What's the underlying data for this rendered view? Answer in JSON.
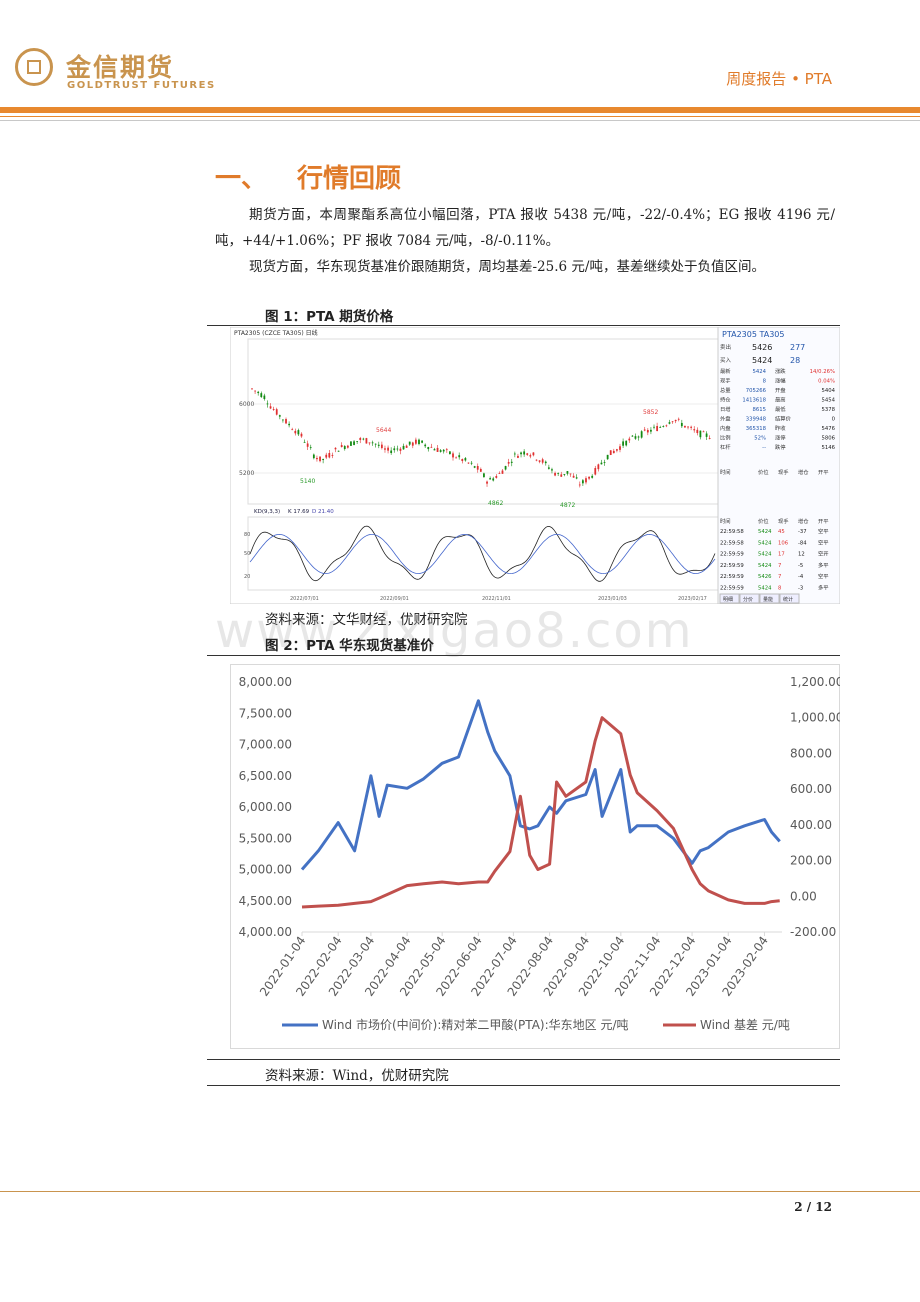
{
  "header": {
    "brand_cn": "金信期货",
    "brand_en": "GOLDTRUST FUTURES",
    "report_type": "周度报告 • PTA",
    "brand_color": "#c9944e",
    "accent_color": "#e8892f"
  },
  "section": {
    "number": "一、",
    "title": "行情回顾"
  },
  "paragraphs": [
    "期货方面，本周聚酯系高位小幅回落，PTA 报收 5438 元/吨，-22/-0.4%；EG 报收 4196 元/吨，+44/+1.06%；PF 报收 7084 元/吨，-8/-0.11%。",
    "现货方面，华东现货基准价跟随期货，周均基差-25.6 元/吨，基差继续处于负值区间。"
  ],
  "figure1": {
    "caption": "图 1：PTA 期货价格",
    "source": "资料来源：文华财经，优财研究院",
    "toolbar": "PTA2305 (CZCE TA305)  日线",
    "price_labels": [
      "6000",
      "5200"
    ],
    "point_labels": [
      "5644",
      "5140",
      "4862",
      "4872",
      "5852"
    ],
    "kd_title": "KD(9,3,3)",
    "kd_k": "K 17.69",
    "kd_d": "D 21.40",
    "kd_ticks": [
      "80",
      "50",
      "20"
    ],
    "dates": [
      "2022/07/01",
      "2022/09/01",
      "2022/11/01",
      "2023/01/03",
      "2023/02/17"
    ],
    "contract_title": "PTA2305  TA305",
    "ask_label": "卖出",
    "ask_price": "5426",
    "ask_vol": "277",
    "bid_label": "买入",
    "bid_price": "5424",
    "bid_vol": "28",
    "quote_rows": [
      [
        "最新",
        "5424",
        "涨跌",
        "14/0.26%"
      ],
      [
        "现手",
        "8",
        "涨幅",
        "0.04%"
      ],
      [
        "总量",
        "705266",
        "开盘",
        "5404"
      ],
      [
        "持仓",
        "1413618",
        "最高",
        "5454"
      ],
      [
        "日增",
        "8615",
        "最低",
        "5378"
      ],
      [
        "外盘",
        "339948",
        "结算价",
        "0"
      ],
      [
        "内盘",
        "365318",
        "昨收",
        "5476"
      ],
      [
        "比例",
        "52%",
        "涨停",
        "5806"
      ],
      [
        "杠杆",
        "--",
        "跌停",
        "5146"
      ]
    ],
    "tick_header": [
      "时间",
      "价位",
      "现手",
      "增仓",
      "开平"
    ],
    "ticks": [
      [
        "22:59:58",
        "5424",
        "45",
        "-37",
        "空平"
      ],
      [
        "22:59:58",
        "5424",
        "106",
        "-84",
        "空平"
      ],
      [
        "22:59:59",
        "5424",
        "17",
        "12",
        "空开"
      ],
      [
        "22:59:59",
        "5424",
        "7",
        "-5",
        "多平"
      ],
      [
        "22:59:59",
        "5426",
        "7",
        "-4",
        "空平"
      ],
      [
        "22:59:59",
        "5424",
        "8",
        "-3",
        "多平"
      ]
    ],
    "bottom_tabs": [
      "明细",
      "分价",
      "量能",
      "统计"
    ]
  },
  "watermark": "www.zixigao8.com",
  "figure2": {
    "caption": "图 2：PTA 华东现货基准价",
    "source": "资料来源：Wind，优财研究院"
  },
  "chart_data": {
    "type": "line",
    "title": "",
    "x": [
      "2022-01-04",
      "2022-01-18",
      "2022-02-04",
      "2022-02-18",
      "2022-03-04",
      "2022-03-11",
      "2022-03-18",
      "2022-04-04",
      "2022-04-18",
      "2022-05-04",
      "2022-05-18",
      "2022-06-04",
      "2022-06-12",
      "2022-06-18",
      "2022-07-01",
      "2022-07-10",
      "2022-07-18",
      "2022-07-25",
      "2022-08-04",
      "2022-08-10",
      "2022-08-18",
      "2022-09-04",
      "2022-09-12",
      "2022-09-18",
      "2022-10-04",
      "2022-10-12",
      "2022-10-18",
      "2022-11-04",
      "2022-11-18",
      "2022-12-04",
      "2022-12-11",
      "2022-12-18",
      "2023-01-04",
      "2023-01-18",
      "2023-02-04",
      "2023-02-10",
      "2023-02-17"
    ],
    "xticks": [
      "2022-01-04",
      "2022-02-04",
      "2022-03-04",
      "2022-04-04",
      "2022-05-04",
      "2022-06-04",
      "2022-07-04",
      "2022-08-04",
      "2022-09-04",
      "2022-10-04",
      "2022-11-04",
      "2022-12-04",
      "2023-01-04",
      "2023-02-04"
    ],
    "series": [
      {
        "name": "Wind 市场价(中间价):精对苯二甲酸(PTA):华东地区 元/吨",
        "axis": "left",
        "color": "#4472c4",
        "values": [
          5000,
          5300,
          5750,
          5300,
          6500,
          5850,
          6350,
          6300,
          6450,
          6700,
          6800,
          7700,
          7200,
          6900,
          6500,
          5700,
          5650,
          5700,
          6000,
          5900,
          6100,
          6200,
          6600,
          5850,
          6600,
          5600,
          5700,
          5700,
          5500,
          5100,
          5300,
          5350,
          5600,
          5700,
          5800,
          5600,
          5450
        ]
      },
      {
        "name": "Wind 基差 元/吨",
        "axis": "right",
        "color": "#c0504d",
        "values": [
          -60,
          -55,
          -50,
          -40,
          -30,
          -10,
          10,
          60,
          70,
          80,
          70,
          80,
          80,
          140,
          250,
          560,
          230,
          150,
          180,
          640,
          560,
          640,
          870,
          1000,
          910,
          680,
          580,
          480,
          380,
          150,
          70,
          30,
          -20,
          -40,
          -40,
          -30,
          -25
        ]
      }
    ],
    "ylim_left": [
      4000,
      8000
    ],
    "ylim_right": [
      -200,
      1200
    ],
    "yticks_left": [
      "4,000.00",
      "4,500.00",
      "5,000.00",
      "5,500.00",
      "6,000.00",
      "6,500.00",
      "7,000.00",
      "7,500.00",
      "8,000.00"
    ],
    "yticks_right": [
      "-200.00",
      "0.00",
      "200.00",
      "400.00",
      "600.00",
      "800.00",
      "1,000.00",
      "1,200.00"
    ],
    "legend_position": "bottom",
    "grid": false
  },
  "footer": {
    "page": "2 / 12"
  }
}
